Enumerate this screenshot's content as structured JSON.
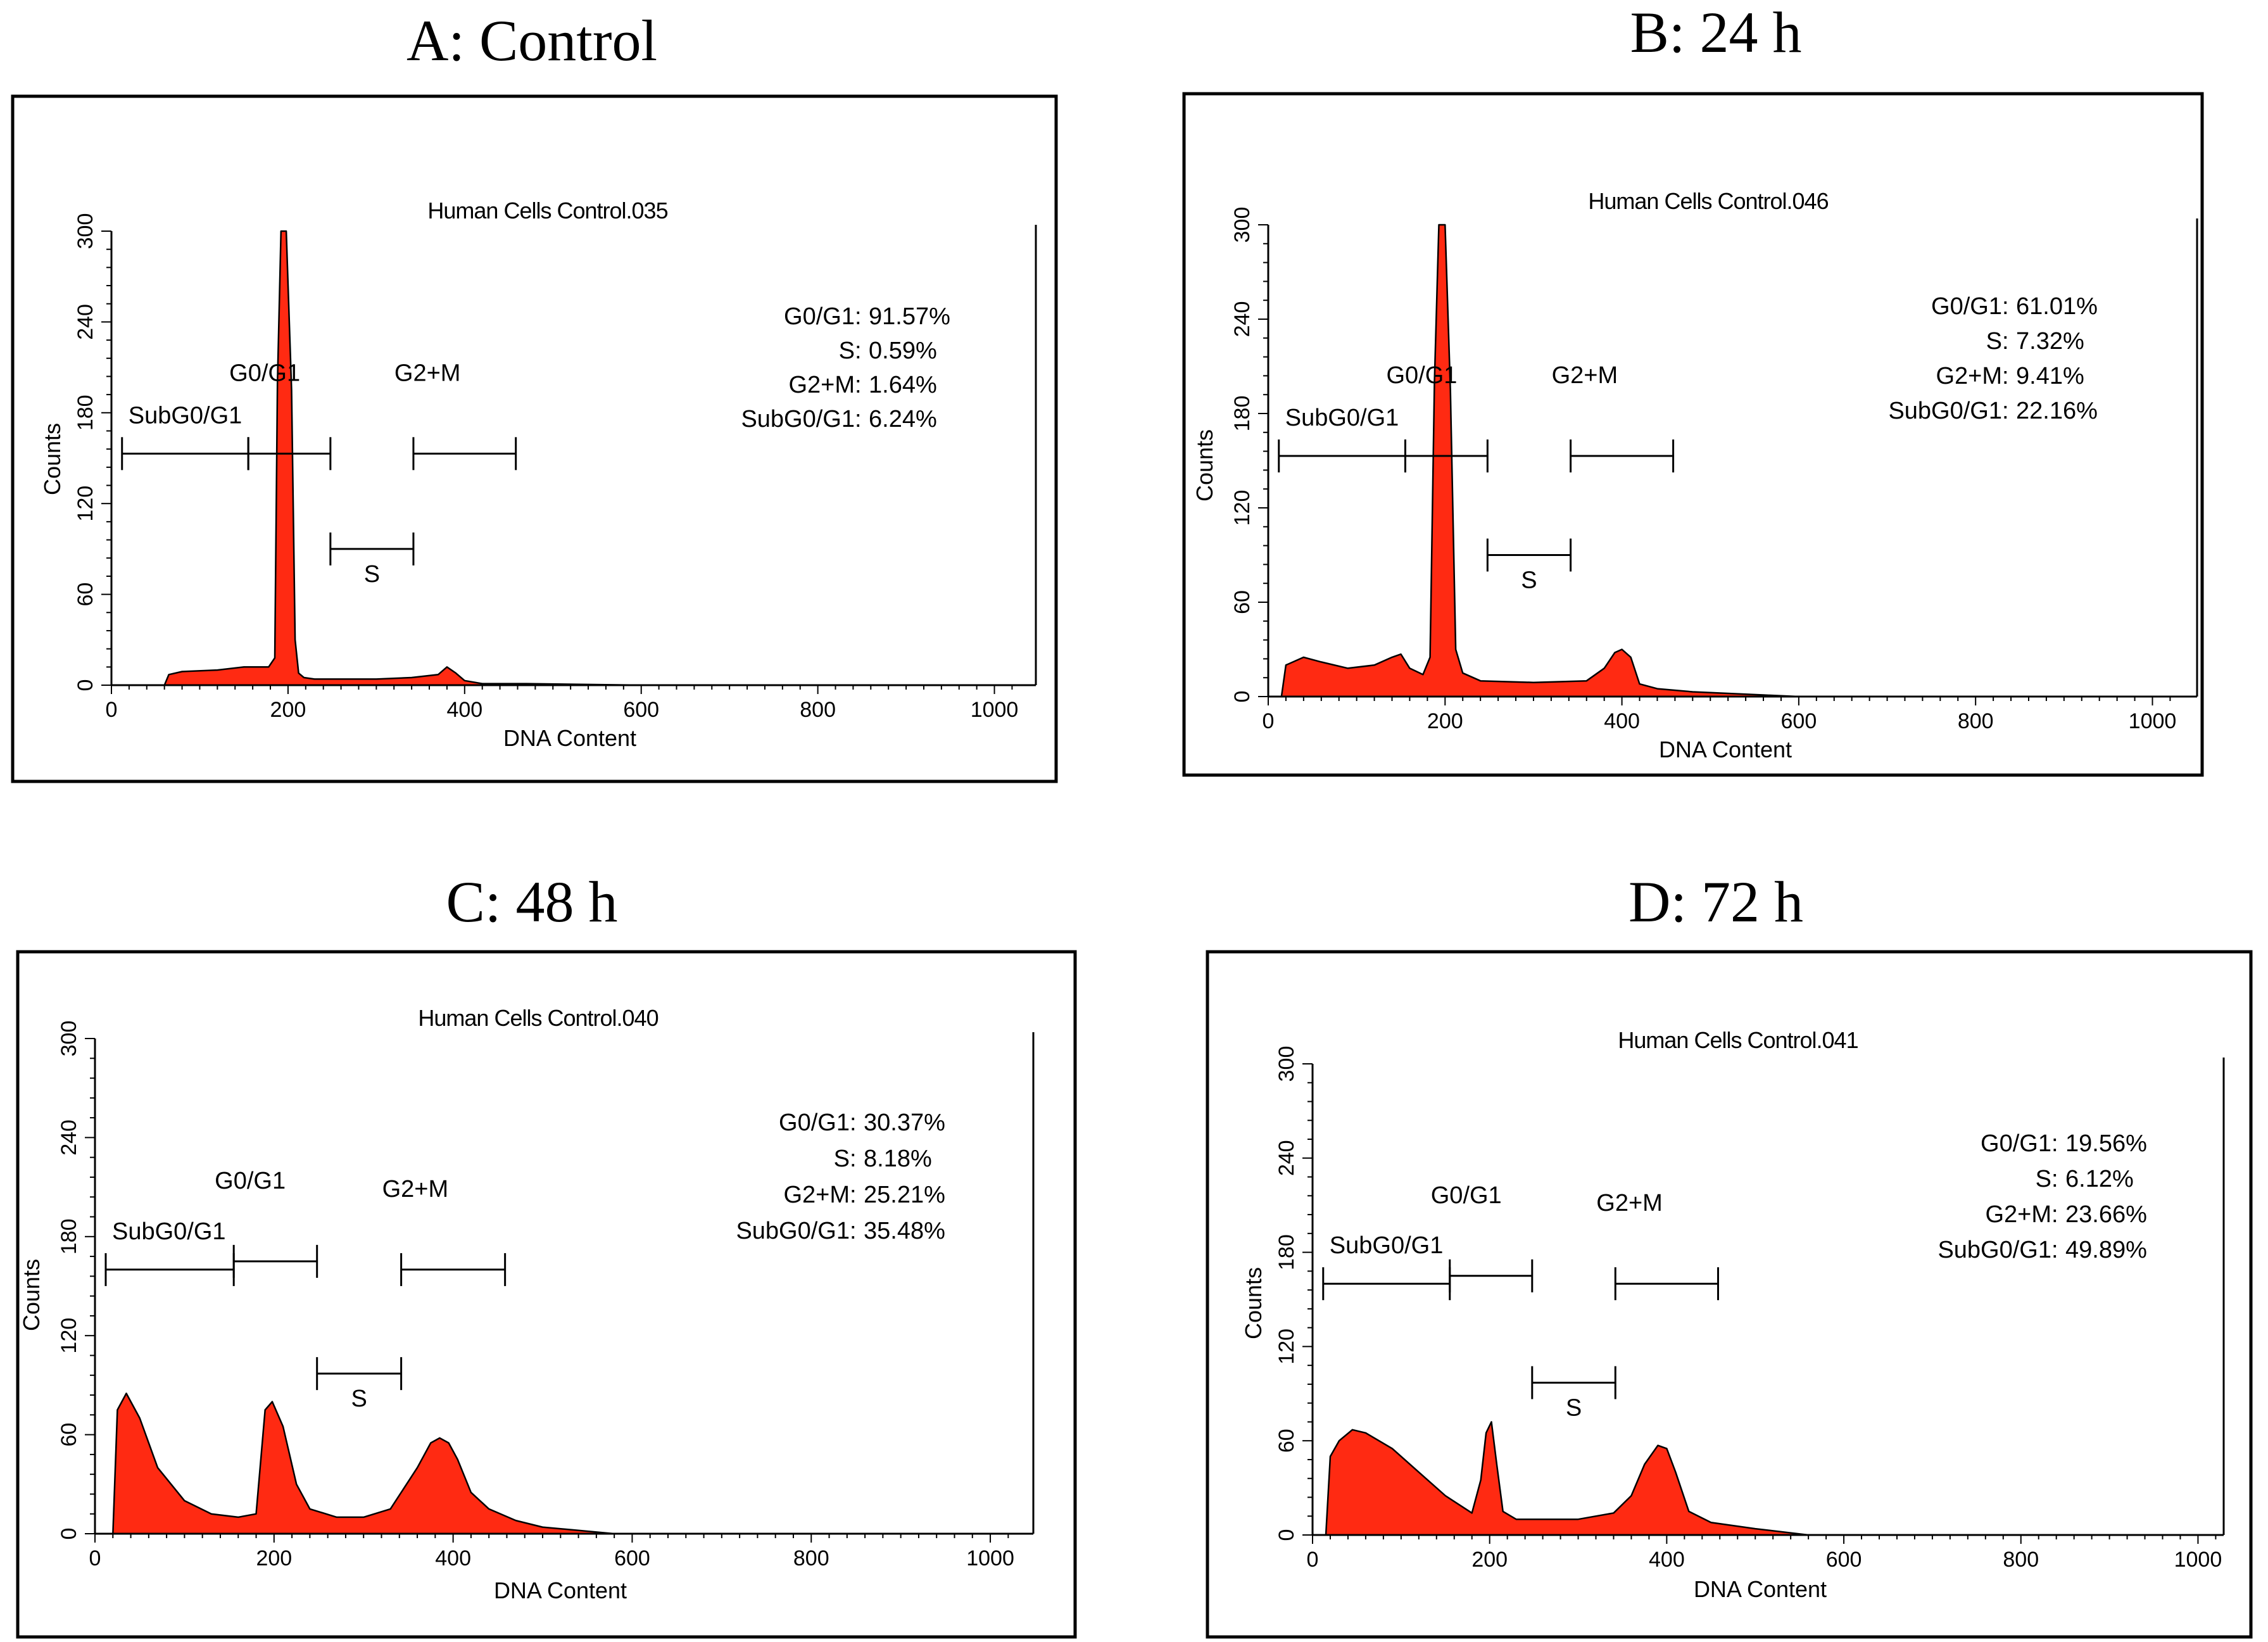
{
  "colors": {
    "fill": "#ff2a12",
    "outline": "#000000",
    "frame": "#000000"
  },
  "chart_data": [
    {
      "type": "area",
      "panel_title": "A: Control",
      "title": "Human Cells Control.035",
      "xlabel": "DNA Content",
      "ylabel": "Counts",
      "xlim": [
        0,
        1024
      ],
      "ylim": [
        0,
        300
      ],
      "xticks": [
        "0",
        "200",
        "400",
        "600",
        "800",
        "1000"
      ],
      "yticks": [
        "0",
        "60",
        "120",
        "180",
        "240",
        "300"
      ],
      "x": [
        0,
        60,
        65,
        80,
        120,
        150,
        178,
        185,
        188,
        192,
        198,
        204,
        208,
        212,
        218,
        230,
        250,
        300,
        340,
        370,
        380,
        390,
        400,
        410,
        420,
        470,
        600,
        1024
      ],
      "counts": [
        0,
        0,
        7,
        9,
        10,
        12,
        12,
        18,
        200,
        300,
        300,
        195,
        30,
        8,
        5,
        4,
        4,
        4,
        5,
        7,
        12,
        8,
        3,
        2,
        1,
        1,
        0,
        0
      ],
      "gates": [
        {
          "label": "SubG0/G1",
          "x0": 12,
          "x1": 155,
          "y": 153
        },
        {
          "label": "G0/G1",
          "x0": 155,
          "x1": 248,
          "y": 153
        },
        {
          "label": "S",
          "x0": 248,
          "x1": 342,
          "y": 90
        },
        {
          "label": "G2+M",
          "x0": 342,
          "x1": 458,
          "y": 153
        }
      ],
      "stats": [
        {
          "label": "G0/G1",
          "value": "91.57%"
        },
        {
          "label": "S",
          "value": "0.59%"
        },
        {
          "label": "G2+M",
          "value": "1.64%"
        },
        {
          "label": "SubG0/G1",
          "value": "6.24%"
        }
      ]
    },
    {
      "type": "area",
      "panel_title": "B: 24 h",
      "title": "Human Cells Control.046",
      "xlabel": "DNA Content",
      "ylabel": "Counts",
      "xlim": [
        0,
        1024
      ],
      "ylim": [
        0,
        300
      ],
      "xticks": [
        "0",
        "200",
        "400",
        "600",
        "800",
        "1000"
      ],
      "yticks": [
        "0",
        "60",
        "120",
        "180",
        "240",
        "300"
      ],
      "x": [
        0,
        15,
        20,
        40,
        60,
        90,
        120,
        140,
        150,
        160,
        175,
        183,
        188,
        193,
        200,
        206,
        212,
        220,
        240,
        300,
        360,
        380,
        392,
        400,
        410,
        420,
        440,
        480,
        520,
        560,
        600,
        1024
      ],
      "counts": [
        0,
        0,
        20,
        25,
        22,
        18,
        20,
        25,
        27,
        18,
        14,
        25,
        200,
        300,
        300,
        195,
        30,
        15,
        10,
        9,
        10,
        18,
        28,
        30,
        25,
        8,
        5,
        3,
        2,
        1,
        0,
        0
      ],
      "gates": [
        {
          "label": "SubG0/G1",
          "x0": 12,
          "x1": 155,
          "y": 153
        },
        {
          "label": "G0/G1",
          "x0": 155,
          "x1": 248,
          "y": 153
        },
        {
          "label": "S",
          "x0": 248,
          "x1": 342,
          "y": 90
        },
        {
          "label": "G2+M",
          "x0": 342,
          "x1": 458,
          "y": 153
        }
      ],
      "stats": [
        {
          "label": "G0/G1",
          "value": "61.01%"
        },
        {
          "label": "S",
          "value": "7.32%"
        },
        {
          "label": "G2+M",
          "value": "9.41%"
        },
        {
          "label": "SubG0/G1",
          "value": "22.16%"
        }
      ]
    },
    {
      "type": "area",
      "panel_title": "C: 48 h",
      "title": "Human Cells Control.040",
      "xlabel": "DNA Content",
      "ylabel": "Counts",
      "xlim": [
        0,
        1024
      ],
      "ylim": [
        0,
        300
      ],
      "xticks": [
        "0",
        "200",
        "400",
        "600",
        "800",
        "1000"
      ],
      "yticks": [
        "0",
        "60",
        "120",
        "180",
        "240",
        "300"
      ],
      "x": [
        0,
        20,
        25,
        35,
        50,
        70,
        100,
        130,
        160,
        180,
        190,
        198,
        210,
        225,
        240,
        270,
        300,
        330,
        360,
        375,
        385,
        395,
        405,
        420,
        440,
        470,
        500,
        540,
        580,
        1024
      ],
      "counts": [
        0,
        0,
        75,
        85,
        70,
        40,
        20,
        12,
        10,
        12,
        75,
        80,
        65,
        30,
        15,
        10,
        10,
        15,
        40,
        55,
        58,
        55,
        45,
        25,
        15,
        8,
        4,
        2,
        0,
        0
      ],
      "gates": [
        {
          "label": "SubG0/G1",
          "x0": 12,
          "x1": 155,
          "y": 160
        },
        {
          "label": "G0/G1",
          "x0": 155,
          "x1": 248,
          "y": 165
        },
        {
          "label": "S",
          "x0": 248,
          "x1": 342,
          "y": 97
        },
        {
          "label": "G2+M",
          "x0": 342,
          "x1": 458,
          "y": 160
        }
      ],
      "stats": [
        {
          "label": "G0/G1",
          "value": "30.37%"
        },
        {
          "label": "S",
          "value": "8.18%"
        },
        {
          "label": "G2+M",
          "value": "25.21%"
        },
        {
          "label": "SubG0/G1",
          "value": "35.48%"
        }
      ]
    },
    {
      "type": "area",
      "panel_title": "D: 72 h",
      "title": "Human Cells Control.041",
      "xlabel": "DNA Content",
      "ylabel": "Counts",
      "xlim": [
        0,
        1024
      ],
      "ylim": [
        0,
        300
      ],
      "xticks": [
        "0",
        "200",
        "400",
        "600",
        "800",
        "1000"
      ],
      "yticks": [
        "0",
        "60",
        "120",
        "180",
        "240",
        "300"
      ],
      "x": [
        0,
        15,
        20,
        30,
        45,
        60,
        90,
        120,
        150,
        180,
        190,
        196,
        202,
        208,
        215,
        230,
        260,
        300,
        340,
        360,
        375,
        390,
        400,
        410,
        425,
        450,
        500,
        560,
        1024
      ],
      "counts": [
        0,
        0,
        50,
        60,
        67,
        65,
        55,
        40,
        25,
        14,
        35,
        65,
        72,
        45,
        15,
        10,
        10,
        10,
        14,
        25,
        45,
        57,
        55,
        40,
        15,
        8,
        4,
        0,
        0
      ],
      "gates": [
        {
          "label": "SubG0/G1",
          "x0": 12,
          "x1": 155,
          "y": 160
        },
        {
          "label": "G0/G1",
          "x0": 155,
          "x1": 248,
          "y": 165
        },
        {
          "label": "S",
          "x0": 248,
          "x1": 342,
          "y": 97
        },
        {
          "label": "G2+M",
          "x0": 342,
          "x1": 458,
          "y": 160
        }
      ],
      "stats": [
        {
          "label": "G0/G1",
          "value": "19.56%"
        },
        {
          "label": "S",
          "value": "6.12%"
        },
        {
          "label": "G2+M",
          "value": "23.66%"
        },
        {
          "label": "SubG0/G1",
          "value": "49.89%"
        }
      ]
    }
  ]
}
